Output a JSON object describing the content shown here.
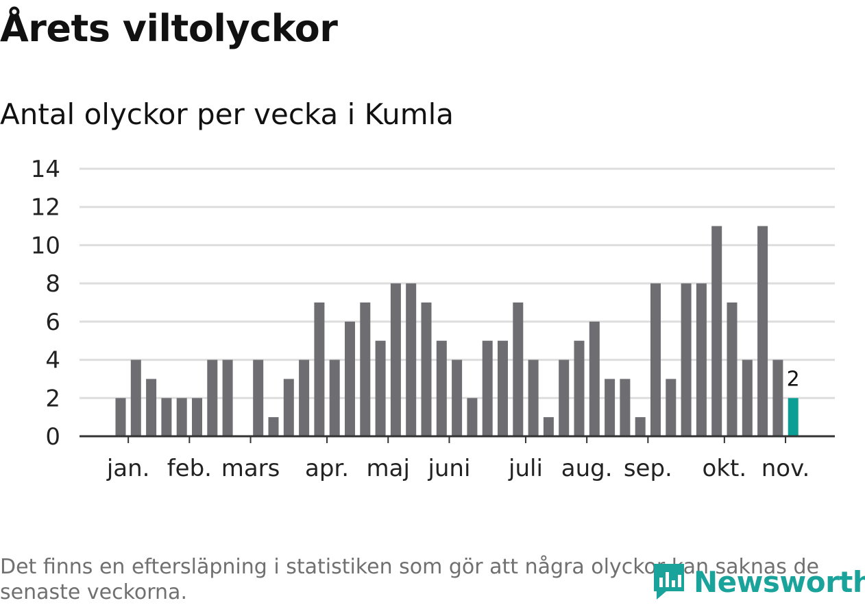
{
  "title": "Årets viltolyckor",
  "subtitle": "Antal olyckor per vecka i Kumla",
  "footnote": "Det finns en eftersläpning i statistiken som gör att några olyckor kan saknas de senaste veckorna.",
  "logo": {
    "text": "Newsworthy",
    "icon": "bar-chart-logo-icon"
  },
  "colors": {
    "bar": "#6e6d72",
    "highlight": "#0a9e94",
    "grid": "#dddddd",
    "axis": "#333333",
    "brand": "#1aa39a"
  },
  "chart_data": {
    "type": "bar",
    "title": "Årets viltolyckor",
    "subtitle": "Antal olyckor per vecka i Kumla",
    "xlabel": "",
    "ylabel": "",
    "ylim": [
      0,
      14
    ],
    "yticks": [
      0,
      2,
      4,
      6,
      8,
      10,
      12,
      14
    ],
    "grid": true,
    "month_labels": [
      "jan.",
      "feb.",
      "mars",
      "apr.",
      "maj",
      "juni",
      "juli",
      "aug.",
      "sep.",
      "okt.",
      "nov."
    ],
    "month_label_weeks": [
      1.5,
      5.5,
      9.5,
      14.5,
      18.5,
      22.5,
      27.5,
      31.5,
      35.5,
      40.5,
      44.5
    ],
    "weeks": [
      1,
      2,
      3,
      4,
      5,
      6,
      7,
      8,
      9,
      10,
      11,
      12,
      13,
      14,
      15,
      16,
      17,
      18,
      19,
      20,
      21,
      22,
      23,
      24,
      25,
      26,
      27,
      28,
      29,
      30,
      31,
      32,
      33,
      34,
      35,
      36,
      37,
      38,
      39,
      40,
      41,
      42,
      43,
      44,
      45
    ],
    "values": [
      2,
      4,
      3,
      2,
      2,
      2,
      4,
      4,
      0,
      4,
      1,
      3,
      4,
      7,
      4,
      6,
      7,
      5,
      8,
      8,
      7,
      5,
      4,
      2,
      5,
      5,
      7,
      4,
      1,
      4,
      5,
      6,
      3,
      3,
      1,
      8,
      3,
      8,
      8,
      11,
      7,
      4,
      11,
      4,
      2
    ],
    "highlight_last": true,
    "data_labels": [
      {
        "week": 45,
        "text": "2"
      }
    ]
  }
}
